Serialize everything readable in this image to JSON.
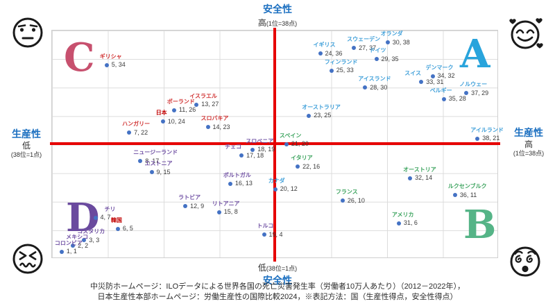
{
  "chart_data": {
    "type": "scatter",
    "title": "",
    "axes": {
      "top": {
        "title": "安全性",
        "value": "高",
        "note": "(1位=38点)"
      },
      "bottom": {
        "title": "安全性",
        "value": "低",
        "note": "(38位=1点)"
      },
      "left": {
        "title": "生産性",
        "value": "低",
        "note": "(38位=1点)"
      },
      "right": {
        "title": "生産性",
        "value": "高",
        "note": "(1位=38点)"
      }
    },
    "xlim": [
      1,
      38
    ],
    "ylim": [
      1,
      38
    ],
    "grid": true,
    "value_label_format": "x, y",
    "points": [
      {
        "name": "ギリシャ",
        "x": 5,
        "y": 34,
        "g": "C"
      },
      {
        "name": "イスラエル",
        "x": 13,
        "y": 27,
        "g": "C"
      },
      {
        "name": "ポーランド",
        "x": 11,
        "y": 26,
        "g": "C"
      },
      {
        "name": "日本",
        "x": 10,
        "y": 24,
        "g": "C",
        "highlight": true
      },
      {
        "name": "スロバキア",
        "x": 14,
        "y": 23,
        "g": "C"
      },
      {
        "name": "ハンガリー",
        "x": 7,
        "y": 22,
        "g": "C"
      },
      {
        "name": "オランダ",
        "x": 30,
        "y": 38,
        "g": "A"
      },
      {
        "name": "スウェーデン",
        "x": 27,
        "y": 37,
        "g": "A"
      },
      {
        "name": "イギリス",
        "x": 24,
        "y": 36,
        "g": "A"
      },
      {
        "name": "ドイツ",
        "x": 29,
        "y": 35,
        "g": "A"
      },
      {
        "name": "フィンランド",
        "x": 25,
        "y": 33,
        "g": "A"
      },
      {
        "name": "デンマーク",
        "x": 34,
        "y": 32,
        "g": "A"
      },
      {
        "name": "スイス",
        "x": 33,
        "y": 31,
        "g": "A",
        "ldx": -24
      },
      {
        "name": "アイスランド",
        "x": 28,
        "y": 30,
        "g": "A"
      },
      {
        "name": "ノルウェー",
        "x": 37,
        "y": 29,
        "g": "A"
      },
      {
        "name": "ベルギー",
        "x": 35,
        "y": 28,
        "g": "A",
        "ldx": -20
      },
      {
        "name": "オーストラリア",
        "x": 23,
        "y": 25,
        "g": "A"
      },
      {
        "name": "アイルランド",
        "x": 38,
        "y": 21,
        "g": "A"
      },
      {
        "name": "カナダ",
        "x": 20,
        "y": 12,
        "g": "A"
      },
      {
        "name": "スペイン",
        "x": 21,
        "y": 20,
        "g": "B"
      },
      {
        "name": "イタリア",
        "x": 22,
        "y": 16,
        "g": "B"
      },
      {
        "name": "オーストリア",
        "x": 32,
        "y": 14,
        "g": "B"
      },
      {
        "name": "ルクセンブルク",
        "x": 36,
        "y": 11,
        "g": "B"
      },
      {
        "name": "フランス",
        "x": 26,
        "y": 10,
        "g": "B"
      },
      {
        "name": "アメリカ",
        "x": 31,
        "y": 6,
        "g": "B"
      },
      {
        "name": "スロベニア",
        "x": 18,
        "y": 19,
        "g": "D"
      },
      {
        "name": "チェコ",
        "x": 17,
        "y": 18,
        "g": "D",
        "ldx": -24
      },
      {
        "name": "ニュージーランド",
        "x": 8,
        "y": 17,
        "g": "D"
      },
      {
        "name": "エストニア",
        "x": 9,
        "y": 15,
        "g": "D"
      },
      {
        "name": "ポルトガル",
        "x": 16,
        "y": 13,
        "g": "D"
      },
      {
        "name": "ラトビア",
        "x": 12,
        "y": 9,
        "g": "D"
      },
      {
        "name": "リトアニア",
        "x": 15,
        "y": 8,
        "g": "D"
      },
      {
        "name": "チリ",
        "x": 4,
        "y": 7,
        "g": "D",
        "ldx": 13
      },
      {
        "name": "韓国",
        "x": 6,
        "y": 5,
        "g": "D",
        "highlight": true
      },
      {
        "name": "コスタリカ",
        "x": 3,
        "y": 3,
        "g": "D"
      },
      {
        "name": "メキシコ",
        "x": 2,
        "y": 2,
        "g": "D"
      },
      {
        "name": "コロンビア",
        "x": 1,
        "y": 1,
        "g": "D"
      },
      {
        "name": "トルコ",
        "x": 19,
        "y": 4,
        "g": "D"
      }
    ]
  },
  "quadrants": [
    {
      "letter": "C",
      "position": "top-left"
    },
    {
      "letter": "A",
      "position": "top-right"
    },
    {
      "letter": "D",
      "position": "bottom-left"
    },
    {
      "letter": "B",
      "position": "bottom-right"
    }
  ],
  "emojis": {
    "top_left": "expressionless-face",
    "top_right": "smiling-face-with-hearts",
    "bottom_left": "confounded-face",
    "bottom_right": "dizzy-face"
  },
  "colors": {
    "axis_red": "#E60000",
    "dot_blue": "#4472C4",
    "axis_title_blue": "#1B6FC0",
    "grid_gray": "#dcdcdc",
    "group_A": "#3E9FD9",
    "group_B": "#3DA45F",
    "group_C": "#D13434",
    "group_D": "#7253A5",
    "highlight": "#C00000",
    "quad_A": "#29A4DC",
    "quad_B": "#55B487",
    "quad_C": "#C7506E",
    "quad_D": "#6A4A9E"
  },
  "footer": {
    "line1": "中災防ホームページ：ILOデータによる世界各国の死亡災害発生率（労働者10万人あたり）（2012－2022年），",
    "line2": "日本生産性本部ホームページ：労働生産性の国際比較2024，※表記方法：国（生産性得点，安全性得点）"
  }
}
